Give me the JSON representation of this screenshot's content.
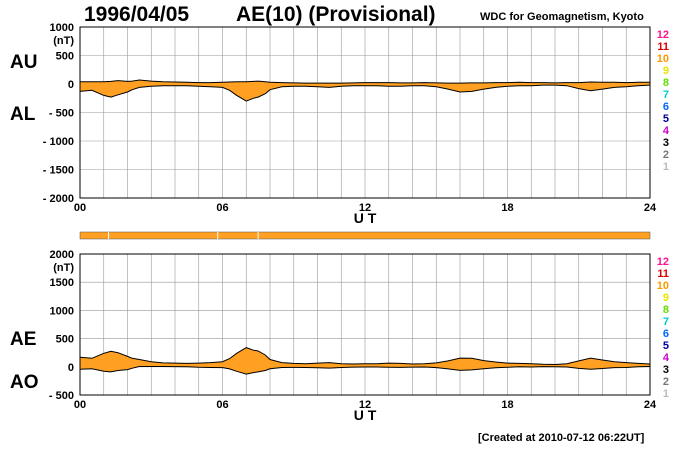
{
  "header": {
    "date": "1996/04/05",
    "title": "AE(10) (Provisional)",
    "source": "WDC for Geomagnetism, Kyoto"
  },
  "footer": {
    "created": "[Created at 2010-07-12 06:22UT]"
  },
  "colors": {
    "fill": "#FFA022",
    "line": "#000000",
    "grid": "#999999",
    "stations_bar": "#FFA022",
    "stations_bar_ticks": "#FFFFFF"
  },
  "station_counts": [
    {
      "label": "12",
      "color": "#FF1493"
    },
    {
      "label": "11",
      "color": "#DD0000"
    },
    {
      "label": "10",
      "color": "#FF9900"
    },
    {
      "label": "9",
      "color": "#E6E600"
    },
    {
      "label": "8",
      "color": "#66DD00"
    },
    {
      "label": "7",
      "color": "#00CCCC"
    },
    {
      "label": "6",
      "color": "#0066FF"
    },
    {
      "label": "5",
      "color": "#000099"
    },
    {
      "label": "4",
      "color": "#CC00CC"
    },
    {
      "label": "3",
      "color": "#000000"
    },
    {
      "label": "2",
      "color": "#777777"
    },
    {
      "label": "1",
      "color": "#BBBBBB"
    }
  ],
  "chart_data": [
    {
      "type": "area",
      "series_labels": [
        "AU",
        "AL"
      ],
      "xlabel": "U T",
      "ylabel_unit": "(nT)",
      "xlim": [
        0,
        24
      ],
      "ylim": [
        -2000,
        1000
      ],
      "x_tick_labels": [
        "00",
        "06",
        "12",
        "18",
        "24"
      ],
      "y_tick_labels": [
        "1000",
        "500",
        "0",
        "- 500",
        "- 1000",
        "- 1500",
        "- 2000"
      ],
      "y_ticks": [
        1000,
        500,
        0,
        -500,
        -1000,
        -1500,
        -2000
      ],
      "grid": true,
      "x": [
        0,
        0.5,
        1,
        1.3,
        1.6,
        2,
        2.2,
        2.5,
        3,
        3.5,
        4,
        4.5,
        5,
        5.5,
        6,
        6.3,
        6.6,
        7,
        7.3,
        7.5,
        7.8,
        8,
        8.5,
        9,
        9.5,
        10,
        10.5,
        11,
        11.5,
        12,
        12.5,
        13,
        13.5,
        14,
        14.5,
        15,
        15.5,
        16,
        16.5,
        17,
        17.5,
        18,
        18.5,
        19,
        19.5,
        20,
        20.5,
        21,
        21.5,
        22,
        22.5,
        23,
        23.5,
        24
      ],
      "upper": [
        40,
        40,
        40,
        45,
        60,
        45,
        50,
        70,
        50,
        40,
        35,
        30,
        25,
        25,
        30,
        35,
        40,
        40,
        45,
        50,
        40,
        30,
        25,
        20,
        15,
        15,
        15,
        15,
        20,
        25,
        25,
        25,
        20,
        20,
        25,
        20,
        15,
        15,
        20,
        20,
        25,
        25,
        30,
        25,
        25,
        20,
        25,
        25,
        35,
        30,
        30,
        25,
        30,
        30
      ],
      "lower": [
        -130,
        -110,
        -200,
        -230,
        -190,
        -140,
        -100,
        -60,
        -40,
        -30,
        -30,
        -30,
        -40,
        -50,
        -60,
        -110,
        -200,
        -300,
        -250,
        -230,
        -170,
        -100,
        -50,
        -40,
        -40,
        -50,
        -60,
        -40,
        -30,
        -30,
        -30,
        -40,
        -40,
        -30,
        -30,
        -50,
        -90,
        -140,
        -130,
        -90,
        -60,
        -40,
        -30,
        -30,
        -20,
        -20,
        -30,
        -80,
        -120,
        -90,
        -60,
        -50,
        -30,
        -20
      ]
    },
    {
      "type": "area",
      "series_labels": [
        "AE",
        "AO"
      ],
      "xlabel": "U T",
      "ylabel_unit": "(nT)",
      "xlim": [
        0,
        24
      ],
      "ylim": [
        -500,
        2000
      ],
      "x_tick_labels": [
        "00",
        "06",
        "12",
        "18",
        "24"
      ],
      "y_tick_labels": [
        "2000",
        "1500",
        "1000",
        "500",
        "0",
        "- 500"
      ],
      "y_ticks": [
        2000,
        1500,
        1000,
        500,
        0,
        -500
      ],
      "grid": true,
      "x": [
        0,
        0.5,
        1,
        1.3,
        1.6,
        2,
        2.2,
        2.5,
        3,
        3.5,
        4,
        4.5,
        5,
        5.5,
        6,
        6.3,
        6.6,
        7,
        7.3,
        7.5,
        7.8,
        8,
        8.5,
        9,
        9.5,
        10,
        10.5,
        11,
        11.5,
        12,
        12.5,
        13,
        13.5,
        14,
        14.5,
        15,
        15.5,
        16,
        16.5,
        17,
        17.5,
        18,
        18.5,
        19,
        19.5,
        20,
        20.5,
        21,
        21.5,
        22,
        22.5,
        23,
        23.5,
        24
      ],
      "upper": [
        170,
        150,
        240,
        275,
        250,
        185,
        150,
        130,
        90,
        70,
        65,
        60,
        65,
        75,
        90,
        145,
        240,
        340,
        295,
        280,
        210,
        130,
        75,
        60,
        55,
        65,
        75,
        55,
        50,
        55,
        55,
        65,
        60,
        50,
        55,
        70,
        105,
        155,
        150,
        110,
        85,
        65,
        60,
        55,
        45,
        40,
        55,
        105,
        155,
        120,
        90,
        75,
        60,
        50
      ],
      "lower": [
        -45,
        -35,
        -80,
        -90,
        -65,
        -50,
        -25,
        5,
        5,
        5,
        3,
        0,
        -8,
        -13,
        -15,
        -38,
        -80,
        -130,
        -103,
        -90,
        -65,
        -35,
        -13,
        -10,
        -13,
        -18,
        -23,
        -13,
        -5,
        -3,
        -3,
        -8,
        -10,
        -5,
        -3,
        -15,
        -38,
        -63,
        -55,
        -35,
        -18,
        -8,
        0,
        -3,
        3,
        0,
        -3,
        -28,
        -43,
        -30,
        -15,
        -13,
        0,
        5
      ]
    }
  ]
}
